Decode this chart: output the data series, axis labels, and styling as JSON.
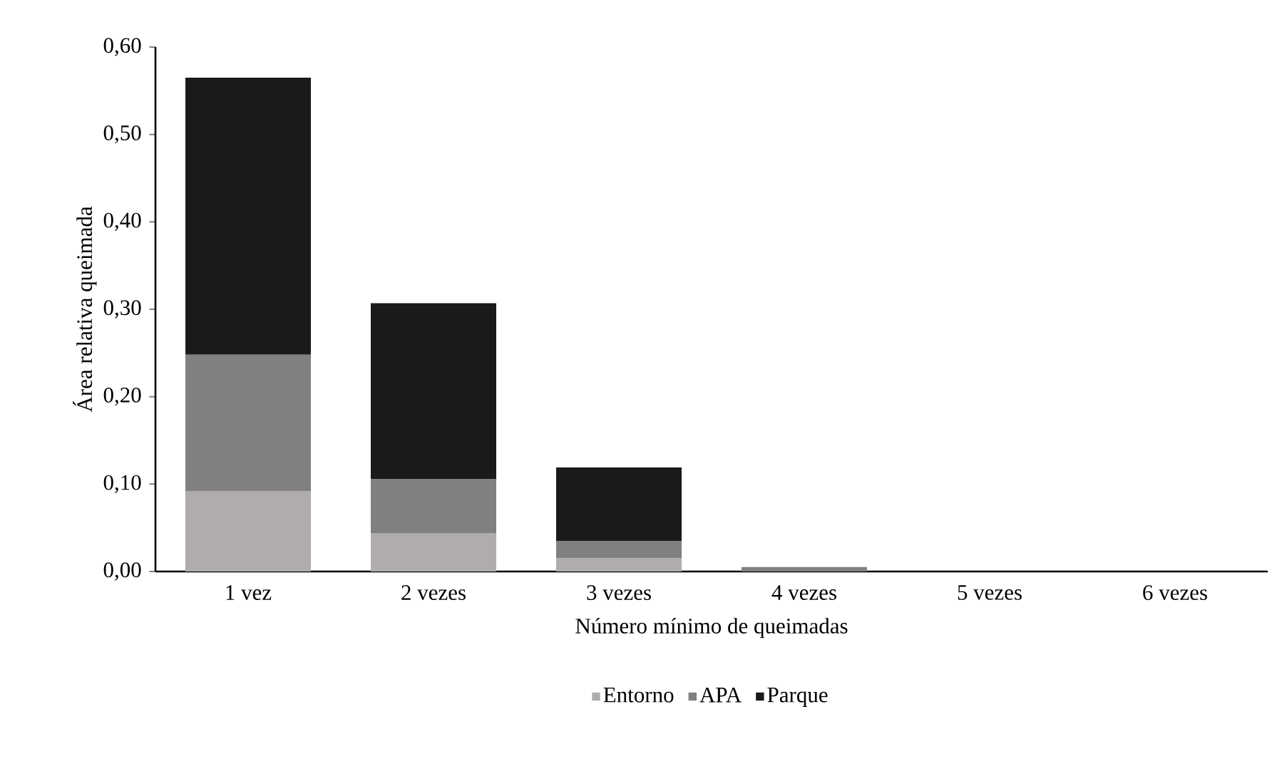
{
  "chart_data": {
    "type": "bar",
    "stacked": true,
    "xlabel": "Número mínimo de queimadas",
    "ylabel": "Área relativa queimada",
    "categories": [
      "1 vez",
      "2 vezes",
      "3 vezes",
      "4 vezes",
      "5 vezes",
      "6 vezes"
    ],
    "series": [
      {
        "name": "Entorno",
        "color": "#afacab",
        "values": [
          0.092,
          0.044,
          0.015,
          null,
          0,
          0
        ]
      },
      {
        "name": "APA",
        "color": "#808080",
        "values": [
          0.156,
          0.062,
          0.02,
          0.005,
          0,
          0
        ]
      },
      {
        "name": "Parque",
        "color": "#1a1a1a",
        "values": [
          0.317,
          0.201,
          0.084,
          0,
          0,
          0
        ]
      }
    ],
    "ylim": [
      0,
      0.6
    ],
    "yticks": [
      {
        "value": 0,
        "label": "0,00"
      },
      {
        "value": 0.1,
        "label": "0,10"
      },
      {
        "value": 0.2,
        "label": "0,20"
      },
      {
        "value": 0.3,
        "label": "0,30"
      },
      {
        "value": 0.4,
        "label": "0,40"
      },
      {
        "value": 0.5,
        "label": "0,50"
      },
      {
        "value": 0.6,
        "label": "0,60"
      }
    ],
    "grid": false,
    "legend": "bottom"
  }
}
